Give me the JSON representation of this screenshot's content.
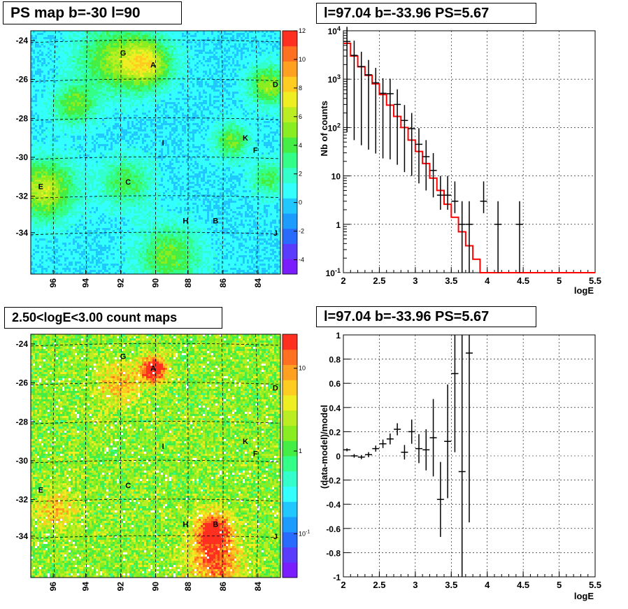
{
  "panels": {
    "map_top_title": "PS map b=-30 l=90",
    "spectrum_title": "l=97.04 b=-33.96 PS=5.67",
    "map_bottom_title": "2.50<logE<3.00 count maps",
    "residual_title": "l=97.04 b=-33.96 PS=5.67"
  },
  "chart_data": [
    {
      "type": "heatmap",
      "name": "ps-map",
      "title": "PS map b=-30 l=90",
      "x_ticks": [
        "96",
        "94",
        "92",
        "90",
        "88",
        "86",
        "84"
      ],
      "y_ticks": [
        "-24",
        "-26",
        "-28",
        "-30",
        "-32",
        "-34"
      ],
      "colorbar_ticks": [
        "12",
        "10",
        "8",
        "6",
        "4",
        "2",
        "0",
        "-2",
        "-4"
      ],
      "colorbar_range": [
        -5,
        12
      ],
      "source_labels": [
        "G",
        "A",
        "D",
        "K",
        "I",
        "F",
        "E",
        "C",
        "H",
        "B",
        "J"
      ],
      "colors": {
        "background": "#33ffff",
        "hot": "#44dd33"
      }
    },
    {
      "type": "line",
      "name": "spectrum",
      "title": "l=97.04 b=-33.96 PS=5.67",
      "xlabel": "logE",
      "ylabel": "Nb of counts",
      "xlim": [
        2,
        5.5
      ],
      "ylim": [
        0.1,
        10000
      ],
      "yscale": "log",
      "x_ticks": [
        "2",
        "2.5",
        "3",
        "3.5",
        "4",
        "4.5",
        "5",
        "5.5"
      ],
      "y_ticks": [
        "10^-1",
        "1",
        "10",
        "10^2",
        "10^3",
        "10^4"
      ],
      "grid": true,
      "model": {
        "edges": [
          2.0,
          2.1,
          2.2,
          2.3,
          2.4,
          2.5,
          2.6,
          2.7,
          2.8,
          2.9,
          3.0,
          3.1,
          3.2,
          3.3,
          3.4,
          3.5,
          3.6,
          3.7,
          3.8,
          3.9,
          4.0,
          4.1,
          4.2,
          4.3,
          4.4,
          4.5,
          4.6,
          4.7,
          4.8,
          4.9,
          5.0,
          5.1,
          5.2,
          5.3,
          5.4,
          5.5
        ],
        "values": [
          5500,
          3000,
          1800,
          1200,
          800,
          480,
          290,
          170,
          100,
          55,
          32,
          18,
          9,
          5,
          2.6,
          1.4,
          0.7,
          0.36,
          0.19,
          0.1,
          0.1,
          0.1,
          0.1,
          0.1,
          0.1,
          0.1,
          0.1,
          0.1,
          0.1,
          0.1,
          0.1,
          0.1,
          0.1,
          0.1,
          0.1
        ],
        "color": "#ff0000"
      },
      "data": {
        "x": [
          2.05,
          2.15,
          2.25,
          2.35,
          2.45,
          2.55,
          2.65,
          2.75,
          2.85,
          2.95,
          3.05,
          3.15,
          3.25,
          3.35,
          3.45,
          3.55,
          3.65,
          3.75,
          3.95,
          4.15,
          4.45
        ],
        "y": [
          6000,
          3100,
          1820,
          1230,
          840,
          510,
          500,
          300,
          140,
          95,
          45,
          25,
          13,
          4,
          4,
          3,
          1,
          1,
          3,
          1,
          1
        ],
        "err_lo": [
          5920,
          3045,
          1777,
          1195,
          811,
          487,
          478,
          283,
          128,
          85,
          38,
          20,
          9.4,
          2,
          2,
          1.3,
          0.9,
          0.9,
          1.3,
          0.9,
          0.9
        ],
        "err_hi": [
          6080,
          3155,
          1863,
          1265,
          869,
          533,
          522,
          317,
          152,
          105,
          52,
          30,
          16.6,
          6,
          6,
          4.7,
          2,
          2,
          4.7,
          2,
          2
        ],
        "color": "#000000"
      }
    },
    {
      "type": "heatmap",
      "name": "count-map",
      "title": "2.50<logE<3.00 count maps",
      "x_ticks": [
        "96",
        "94",
        "92",
        "90",
        "88",
        "86",
        "84"
      ],
      "y_ticks": [
        "-24",
        "-26",
        "-28",
        "-30",
        "-32",
        "-34"
      ],
      "colorbar_ticks": [
        "10",
        "1",
        "10^-1"
      ],
      "colorbar_scale": "log",
      "source_labels": [
        "G",
        "A",
        "D",
        "K",
        "I",
        "F",
        "E",
        "C",
        "H",
        "B",
        "J"
      ],
      "colors": {
        "background": "#d8e020",
        "hot": "#ff5533"
      }
    },
    {
      "type": "scatter",
      "name": "residuals",
      "title": "l=97.04 b=-33.96 PS=5.67",
      "xlabel": "logE",
      "ylabel": "(data-model)/model",
      "xlim": [
        2,
        5.5
      ],
      "ylim": [
        -1,
        1
      ],
      "x_ticks": [
        "2",
        "2.5",
        "3",
        "3.5",
        "4",
        "4.5",
        "5",
        "5.5"
      ],
      "y_ticks": [
        "-1",
        "-0.8",
        "-0.6",
        "-0.4",
        "-0.2",
        "0",
        "0.2",
        "0.4",
        "0.6",
        "0.8",
        "1"
      ],
      "grid": true,
      "points": {
        "x": [
          2.05,
          2.15,
          2.25,
          2.35,
          2.45,
          2.55,
          2.65,
          2.75,
          2.85,
          2.95,
          3.05,
          3.15,
          3.25,
          3.35,
          3.45,
          3.55,
          3.65,
          3.75
        ],
        "y": [
          0.05,
          0.0,
          -0.01,
          0.01,
          0.06,
          0.1,
          0.14,
          0.22,
          0.03,
          0.2,
          0.06,
          0.05,
          0.15,
          -0.36,
          0.12,
          0.68,
          -0.13,
          0.85
        ],
        "err": [
          0.012,
          0.015,
          0.017,
          0.021,
          0.025,
          0.035,
          0.045,
          0.05,
          0.06,
          0.1,
          0.12,
          0.17,
          0.32,
          0.31,
          0.47,
          0.65,
          1.4,
          1.4
        ]
      }
    }
  ]
}
